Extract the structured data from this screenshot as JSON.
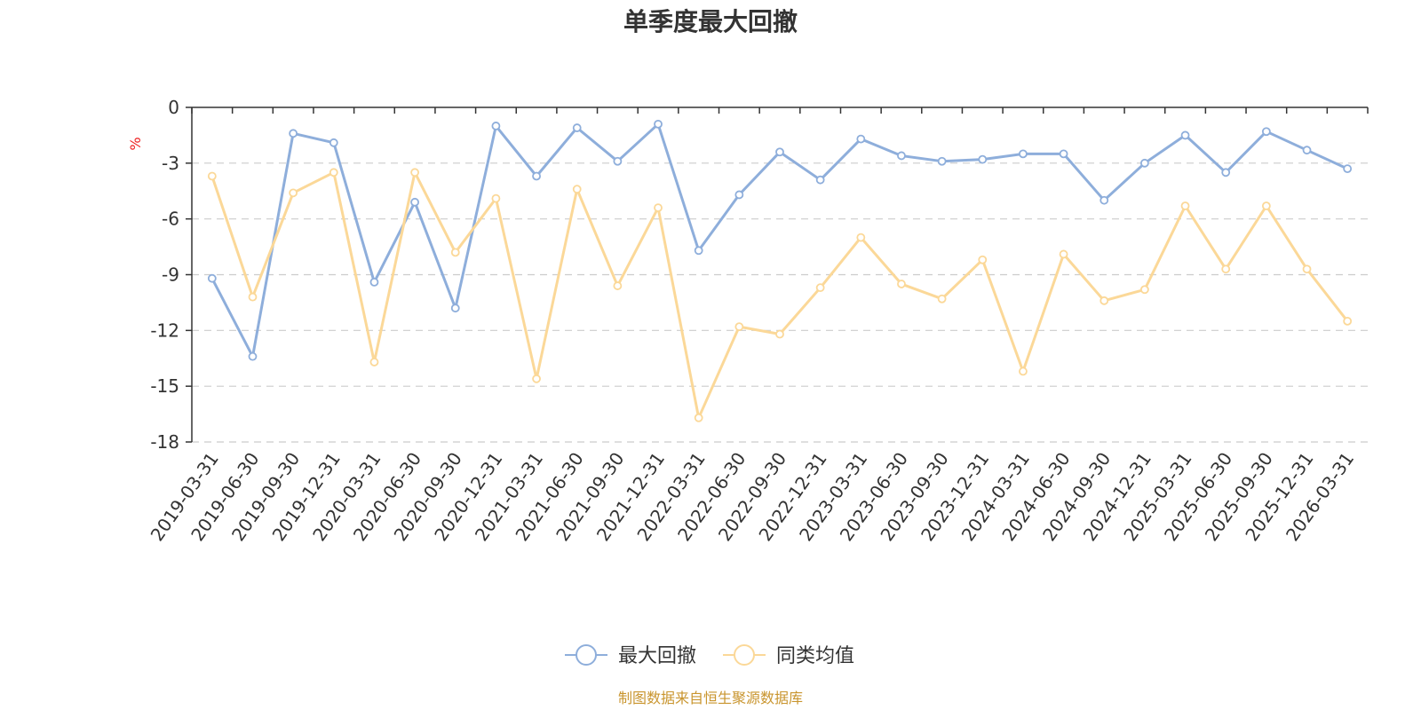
{
  "chart_data": {
    "type": "line",
    "title": "单季度最大回撤",
    "ylabel": "%",
    "ylim": [
      -18,
      0
    ],
    "yticks": [
      0,
      -3,
      -6,
      -9,
      -12,
      -15,
      -18
    ],
    "categories": [
      "2019-03-31",
      "2019-06-30",
      "2019-09-30",
      "2019-12-31",
      "2020-03-31",
      "2020-06-30",
      "2020-09-30",
      "2020-12-31",
      "2021-03-31",
      "2021-06-30",
      "2021-09-30",
      "2021-12-31",
      "2022-03-31",
      "2022-06-30",
      "2022-09-30",
      "2022-12-31",
      "2023-03-31",
      "2023-06-30",
      "2023-09-30",
      "2023-12-31",
      "2024-03-31",
      "2024-06-30",
      "2024-09-30",
      "2024-12-31",
      "2025-03-31",
      "2025-06-30",
      "2025-09-30",
      "2025-12-31",
      "2026-03-31"
    ],
    "series": [
      {
        "name": "最大回撤",
        "color": "#8eaedb",
        "values": [
          -9.2,
          -13.4,
          -1.4,
          -1.9,
          -9.4,
          -5.1,
          -10.8,
          -1.0,
          -3.7,
          -1.1,
          -2.9,
          -0.9,
          -7.7,
          -4.7,
          -2.4,
          -3.9,
          -1.7,
          -2.6,
          -2.9,
          -2.8,
          -2.5,
          -2.5,
          -5.0,
          -3.0,
          -1.5,
          -3.5,
          -1.3,
          -2.3,
          -3.3
        ]
      },
      {
        "name": "同类均值",
        "color": "#fbd898",
        "values": [
          -3.7,
          -10.2,
          -4.6,
          -3.5,
          -13.7,
          -3.5,
          -7.8,
          -4.9,
          -14.6,
          -4.4,
          -9.6,
          -5.4,
          -16.7,
          -11.8,
          -12.2,
          -9.7,
          -7.0,
          -9.5,
          -10.3,
          -8.2,
          -14.2,
          -7.9,
          -10.4,
          -9.8,
          -5.3,
          -8.7,
          -5.3,
          -8.7,
          -11.5
        ]
      }
    ],
    "legend": "bottom-center",
    "grid": true
  },
  "source_note": "制图数据来自恒生聚源数据库",
  "colors": {
    "unit": "#ee2222",
    "source": "#c9952e",
    "axis": "#333333",
    "grid": "#cccccc"
  }
}
